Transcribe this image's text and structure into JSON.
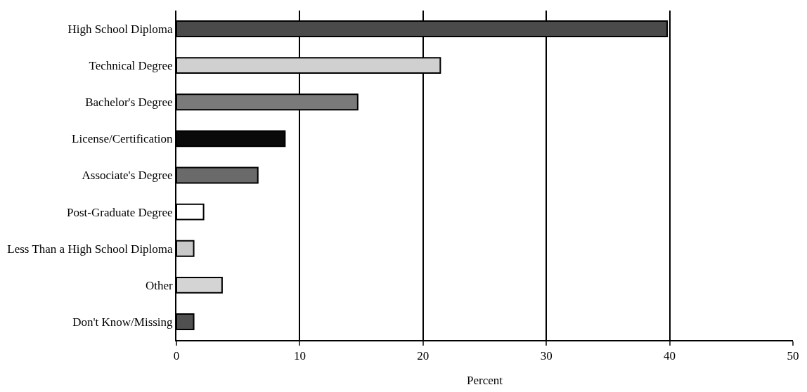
{
  "chart_data": {
    "type": "bar",
    "orientation": "horizontal",
    "xlabel": "Percent",
    "categories": [
      "High School Diploma",
      "Technical Degree",
      "Bachelor's Degree",
      "License/Certification",
      "Associate's Degree",
      "Post-Graduate Degree",
      "Less Than a High School Diploma",
      "Other",
      "Don't Know/Missing"
    ],
    "values": [
      39.8,
      21.4,
      14.7,
      8.8,
      6.6,
      2.2,
      1.4,
      3.7,
      1.4
    ],
    "colors": [
      "#4a4a4a",
      "#d0d0d0",
      "#7a7a7a",
      "#0a0a0a",
      "#6a6a6a",
      "#ffffff",
      "#c8c8c8",
      "#d4d4d4",
      "#505050"
    ],
    "xlim": [
      0,
      50
    ],
    "xticks": [
      0,
      10,
      20,
      30,
      40,
      50
    ],
    "grid": "x",
    "legend": false
  }
}
